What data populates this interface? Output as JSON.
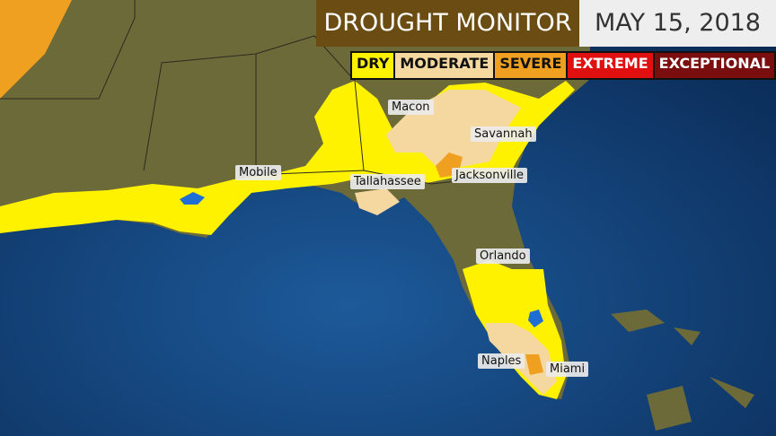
{
  "header": {
    "title": "DROUGHT MONITOR",
    "date": "MAY 15, 2018"
  },
  "legend": [
    "DRY",
    "MODERATE",
    "SEVERE",
    "EXTREME",
    "EXCEPTIONAL"
  ],
  "cities": [
    "Macon",
    "Savannah",
    "Mobile",
    "Tallahassee",
    "Jacksonville",
    "Orlando",
    "Naples",
    "Miami"
  ]
}
